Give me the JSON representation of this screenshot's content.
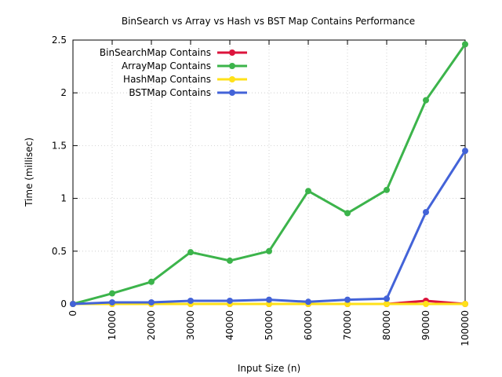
{
  "chart_data": {
    "type": "line",
    "title": "BinSearch vs Array vs Hash vs BST Map Contains Performance",
    "xlabel": "Input Size (n)",
    "ylabel": "Time (millisec)",
    "x": [
      0,
      10000,
      20000,
      30000,
      40000,
      50000,
      60000,
      70000,
      80000,
      90000,
      100000
    ],
    "xlim": [
      0,
      100000
    ],
    "ylim": [
      0,
      2.5
    ],
    "x_ticks": [
      "0",
      "10000",
      "20000",
      "30000",
      "40000",
      "50000",
      "60000",
      "70000",
      "80000",
      "90000",
      "100000"
    ],
    "y_ticks": [
      "0",
      "0.5",
      "1",
      "1.5",
      "2",
      "2.5"
    ],
    "grid": true,
    "legend_position": "top-left",
    "series": [
      {
        "name": "BinSearchMap Contains",
        "color": "#dc143c",
        "values": [
          0,
          0,
          0,
          0,
          0,
          0,
          0,
          0,
          0,
          0.03,
          0
        ]
      },
      {
        "name": "ArrayMap Contains",
        "color": "#3cb44b",
        "values": [
          0,
          0.1,
          0.21,
          0.49,
          0.41,
          0.5,
          1.07,
          0.86,
          1.08,
          1.93,
          2.46
        ]
      },
      {
        "name": "HashMap Contains",
        "color": "#ffe119",
        "values": [
          0,
          0,
          0,
          0,
          0,
          0,
          0,
          0,
          0,
          0,
          0
        ]
      },
      {
        "name": "BSTMap Contains",
        "color": "#4363d8",
        "values": [
          0,
          0.015,
          0.015,
          0.03,
          0.03,
          0.04,
          0.02,
          0.04,
          0.05,
          0.87,
          1.45
        ]
      }
    ]
  }
}
